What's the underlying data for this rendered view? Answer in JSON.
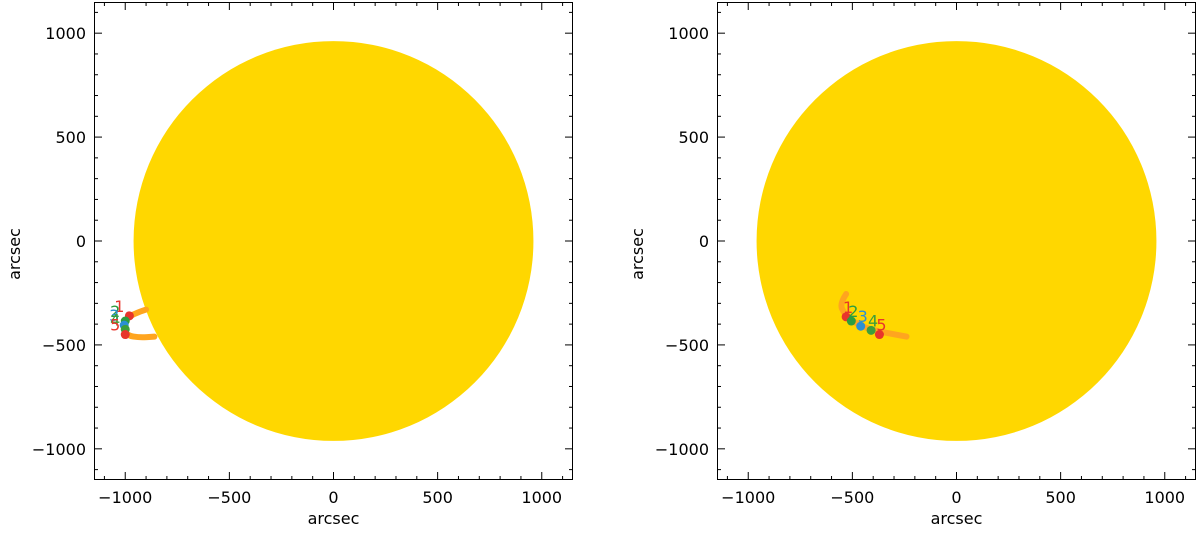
{
  "chart_data": [
    {
      "type": "scatter",
      "title": "",
      "xlabel": "arcsec",
      "ylabel": "arcsec",
      "xlim": [
        -1150,
        1150
      ],
      "ylim": [
        -1150,
        1150
      ],
      "xticks": [
        -1000,
        -500,
        0,
        500,
        1000
      ],
      "yticks": [
        -1000,
        -500,
        0,
        500,
        1000
      ],
      "grid": false,
      "disk": {
        "center": [
          0,
          0
        ],
        "radius": 960,
        "color": "#FFD700"
      },
      "track": {
        "color": "#FFA51F",
        "points": [
          [
            -900,
            -330
          ],
          [
            -960,
            -350
          ],
          [
            -1000,
            -380
          ],
          [
            -1010,
            -420
          ],
          [
            -990,
            -455
          ],
          [
            -930,
            -465
          ],
          [
            -860,
            -460
          ]
        ]
      },
      "points": [
        {
          "label": "1",
          "x": -980,
          "y": -360,
          "color": "#E8352B"
        },
        {
          "label": "2",
          "x": -1000,
          "y": -385,
          "color": "#2E9D3E"
        },
        {
          "label": "3",
          "x": -1005,
          "y": -405,
          "color": "#2B8FD3"
        },
        {
          "label": "4",
          "x": -1000,
          "y": -425,
          "color": "#3E9E3A"
        },
        {
          "label": "5",
          "x": -1000,
          "y": -450,
          "color": "#E8352B"
        }
      ]
    },
    {
      "type": "scatter",
      "title": "",
      "xlabel": "arcsec",
      "ylabel": "arcsec",
      "xlim": [
        -1150,
        1150
      ],
      "ylim": [
        -1150,
        1150
      ],
      "xticks": [
        -1000,
        -500,
        0,
        500,
        1000
      ],
      "yticks": [
        -1000,
        -500,
        0,
        500,
        1000
      ],
      "grid": false,
      "disk": {
        "center": [
          0,
          0
        ],
        "radius": 960,
        "color": "#FFD700"
      },
      "track": {
        "color": "#FFA51F",
        "points": [
          [
            -530,
            -255
          ],
          [
            -560,
            -300
          ],
          [
            -540,
            -350
          ],
          [
            -480,
            -400
          ],
          [
            -400,
            -430
          ],
          [
            -320,
            -445
          ],
          [
            -240,
            -460
          ]
        ]
      },
      "points": [
        {
          "label": "1",
          "x": -530,
          "y": -365,
          "color": "#E8352B"
        },
        {
          "label": "2",
          "x": -505,
          "y": -385,
          "color": "#2E9D3E"
        },
        {
          "label": "3",
          "x": -460,
          "y": -410,
          "color": "#2B8FD3"
        },
        {
          "label": "4",
          "x": -410,
          "y": -430,
          "color": "#3E9E3A"
        },
        {
          "label": "5",
          "x": -370,
          "y": -450,
          "color": "#E8352B"
        }
      ]
    }
  ]
}
